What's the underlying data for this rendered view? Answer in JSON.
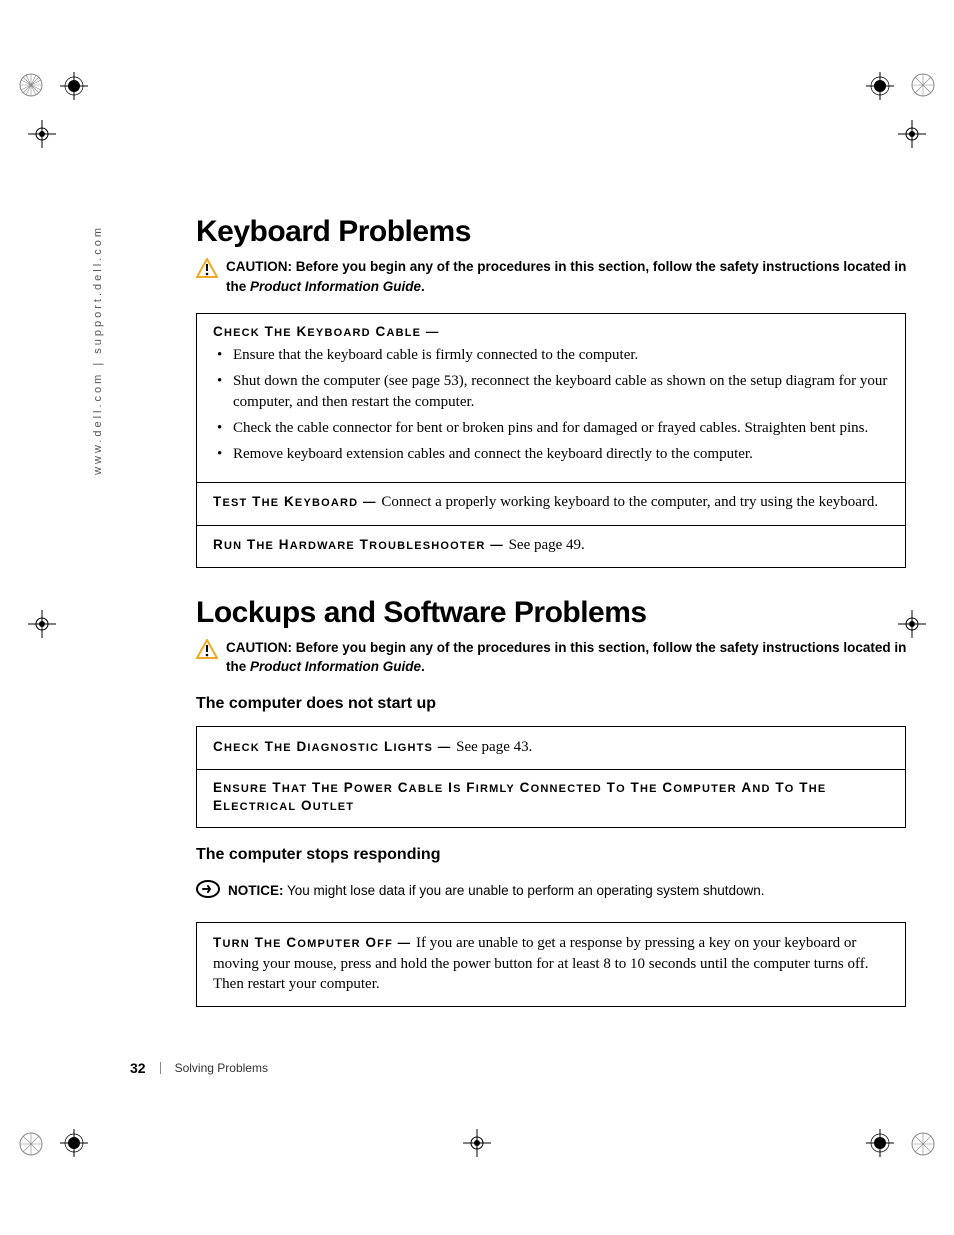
{
  "sidebar_url": "www.dell.com | support.dell.com",
  "section1": {
    "title": "Keyboard Problems",
    "caution_prefix": "CAUTION:",
    "caution_body_a": "Before you begin any of the procedures in this section, follow the safety instructions located in the ",
    "caution_guide": "Product Information Guide",
    "caution_body_b": ".",
    "box1_heading": "CHECK THE KEYBOARD CABLE —",
    "box1_bullets": [
      "Ensure that the keyboard cable is firmly connected to the computer.",
      "Shut down the computer (see page 53), reconnect the keyboard cable as shown on the setup diagram for your computer, and then restart the computer.",
      "Check the cable connector for bent or broken pins and for damaged or frayed cables. Straighten bent pins.",
      "Remove keyboard extension cables and connect the keyboard directly to the computer."
    ],
    "box2_heading": "TEST THE KEYBOARD — ",
    "box2_body": "Connect a properly working keyboard to the computer, and try using the keyboard.",
    "box3_heading": "RUN THE HARDWARE TROUBLESHOOTER — ",
    "box3_body": "See page 49."
  },
  "section2": {
    "title": "Lockups and Software Problems",
    "caution_prefix": "CAUTION:",
    "caution_body_a": "Before you begin any of the procedures in this section, follow the safety instructions located in the ",
    "caution_guide": "Product Information Guide",
    "caution_body_b": ".",
    "sub1": "The computer does not start up",
    "box4_heading": "CHECK THE DIAGNOSTIC LIGHTS — ",
    "box4_body": "See page 43.",
    "box5_heading": "ENSURE THAT THE POWER CABLE IS FIRMLY CONNECTED TO THE COMPUTER AND TO THE ELECTRICAL OUTLET",
    "sub2": "The computer stops responding",
    "notice_prefix": "NOTICE:",
    "notice_body": "You might lose data if you are unable to perform an operating system shutdown.",
    "box6_heading": "TURN THE COMPUTER OFF — ",
    "box6_body": "If you are unable to get a response by pressing a key on your keyboard or moving your mouse, press and hold the power button for at least 8 to 10 seconds until the computer turns off. Then restart your computer."
  },
  "footer": {
    "page_num": "32",
    "section": "Solving Problems"
  },
  "colors": {
    "caution_icon": "#f5a623",
    "notice_icon": "#d9534f"
  }
}
